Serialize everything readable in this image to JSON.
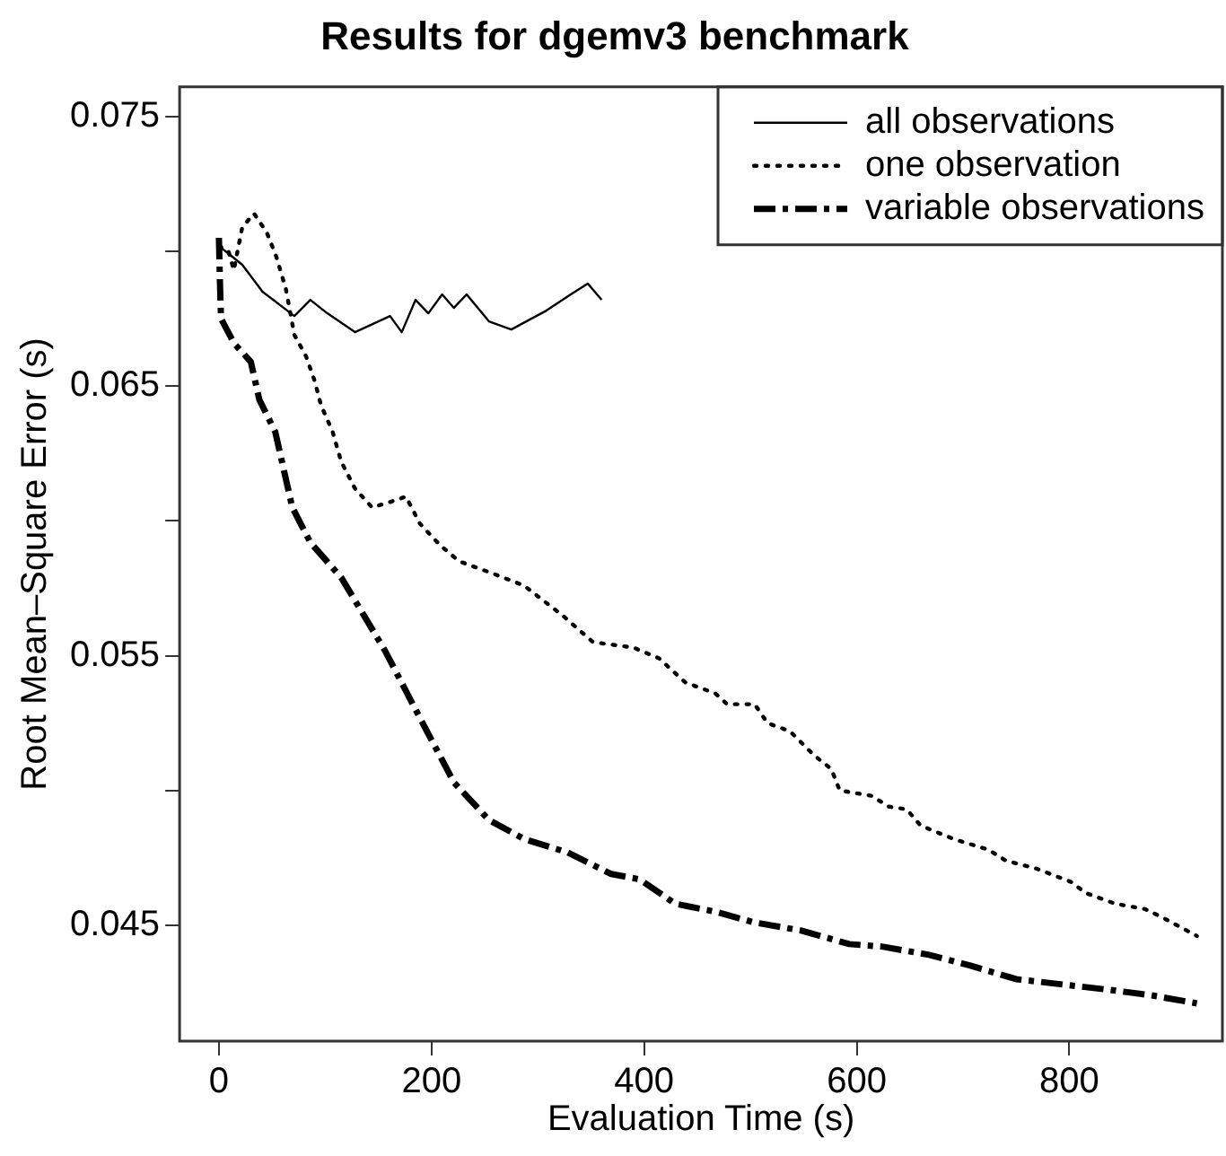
{
  "chart_data": {
    "type": "line",
    "title": "Results for dgemv3 benchmark",
    "xlabel": "Evaluation Time (s)",
    "ylabel": "Root Mean–Square Error (s)",
    "xlim": [
      -37,
      944
    ],
    "ylim": [
      0.0407,
      0.0761
    ],
    "xticks": [
      0,
      200,
      400,
      600,
      800
    ],
    "yticks": [
      {
        "value": 0.045,
        "label": "0.045"
      },
      {
        "value": 0.05,
        "label": null
      },
      {
        "value": 0.055,
        "label": "0.055"
      },
      {
        "value": 0.06,
        "label": null
      },
      {
        "value": 0.065,
        "label": "0.065"
      },
      {
        "value": 0.07,
        "label": null
      },
      {
        "value": 0.075,
        "label": "0.075"
      }
    ],
    "grid": false,
    "legend": "top right",
    "marker": "none",
    "series": [
      {
        "name": "all observations",
        "color": "#000000",
        "line_style": "solid",
        "x": [
          0,
          22,
          41,
          71,
          86,
          102,
          128,
          161,
          172,
          185,
          197,
          210,
          221,
          233,
          254,
          275,
          308,
          331,
          347,
          360
        ],
        "values": [
          0.0702,
          0.0695,
          0.0685,
          0.0676,
          0.0682,
          0.0677,
          0.067,
          0.0676,
          0.067,
          0.0682,
          0.0677,
          0.0684,
          0.0679,
          0.0684,
          0.0674,
          0.0671,
          0.0678,
          0.0684,
          0.0688,
          0.0682
        ]
      },
      {
        "name": "one observation",
        "color": "#000000",
        "line_style": "dotted",
        "x": [
          0,
          9,
          14,
          22,
          33,
          45,
          54,
          63,
          71,
          82,
          90,
          96,
          107,
          115,
          128,
          144,
          161,
          176,
          189,
          208,
          226,
          254,
          287,
          323,
          352,
          390,
          414,
          439,
          467,
          478,
          504,
          516,
          537,
          560,
          576,
          584,
          614,
          630,
          647,
          660,
          691,
          724,
          740,
          769,
          802,
          815,
          843,
          871,
          887,
          920
        ],
        "values": [
          0.0702,
          0.07,
          0.0693,
          0.0709,
          0.0714,
          0.0707,
          0.0698,
          0.0686,
          0.0669,
          0.0661,
          0.0652,
          0.0643,
          0.0633,
          0.0622,
          0.0612,
          0.0605,
          0.0607,
          0.0609,
          0.0599,
          0.0591,
          0.0585,
          0.0581,
          0.0576,
          0.0565,
          0.0555,
          0.0553,
          0.0549,
          0.054,
          0.0536,
          0.0532,
          0.0532,
          0.0525,
          0.0522,
          0.0513,
          0.0508,
          0.05,
          0.0498,
          0.0494,
          0.0493,
          0.0487,
          0.0482,
          0.0478,
          0.0474,
          0.0471,
          0.0466,
          0.0462,
          0.0458,
          0.0456,
          0.0453,
          0.0446
        ]
      },
      {
        "name": "variable observations",
        "color": "#000000",
        "line_style": "dashed",
        "x": [
          0,
          1,
          2,
          14,
          30,
          38,
          53,
          61,
          69,
          86,
          115,
          156,
          189,
          221,
          254,
          287,
          328,
          369,
          396,
          429,
          467,
          504,
          548,
          593,
          625,
          668,
          707,
          750,
          794,
          838,
          877,
          920
        ],
        "values": [
          0.0705,
          0.0688,
          0.0675,
          0.0666,
          0.0659,
          0.0645,
          0.0633,
          0.0619,
          0.0605,
          0.0592,
          0.0579,
          0.0552,
          0.0527,
          0.0503,
          0.0489,
          0.0482,
          0.0477,
          0.0469,
          0.0467,
          0.0458,
          0.0455,
          0.0451,
          0.0448,
          0.0443,
          0.0442,
          0.0439,
          0.0435,
          0.043,
          0.0428,
          0.0426,
          0.0424,
          0.0421
        ]
      }
    ]
  }
}
